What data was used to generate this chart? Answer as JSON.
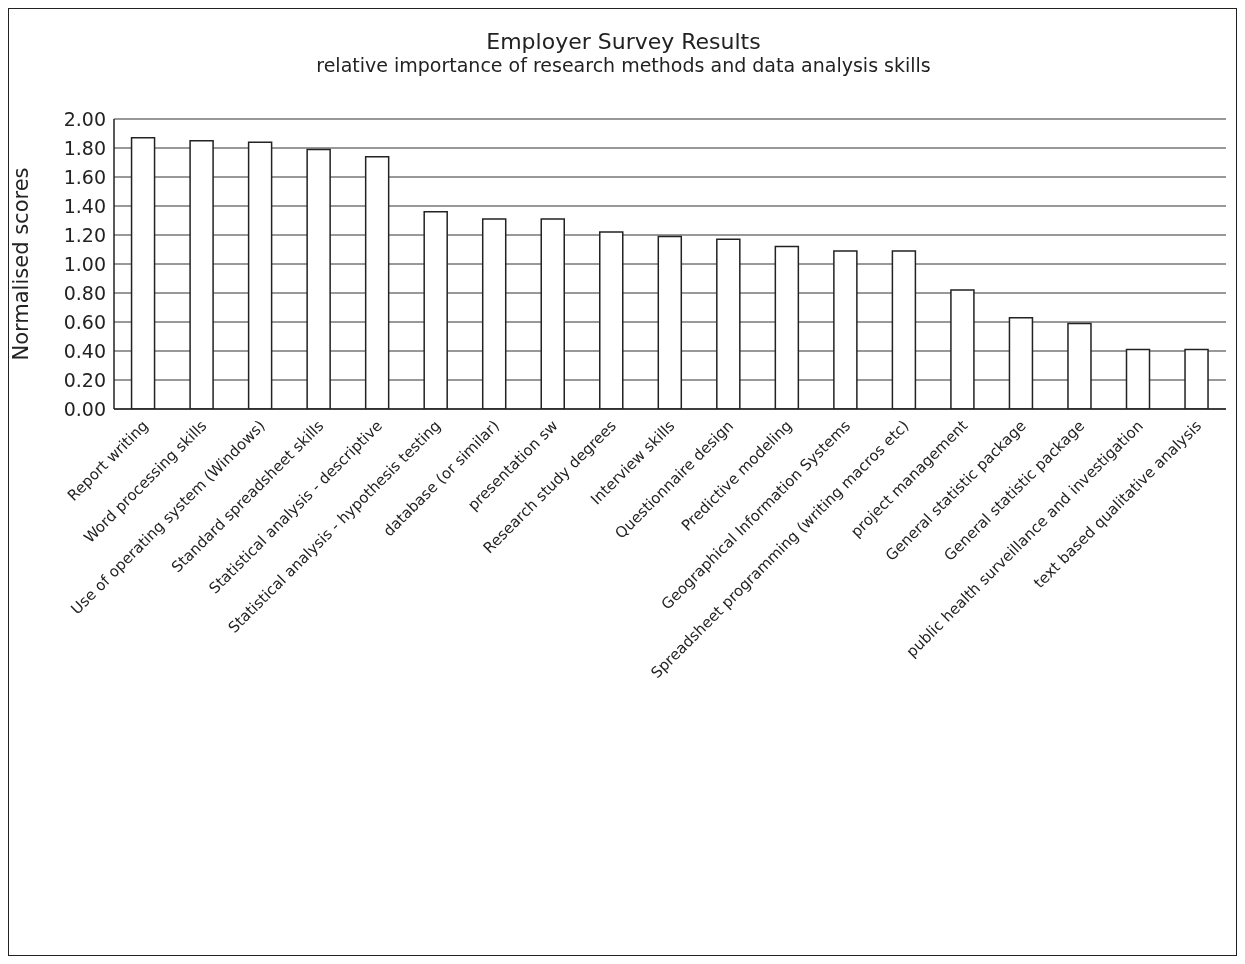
{
  "chart_data": {
    "type": "bar",
    "title": "Employer Survey Results",
    "subtitle": "relative importance of research methods and data analysis skills",
    "ylabel": "Normalised scores",
    "categories": [
      "Report writing",
      "Word processing skills",
      "Use of operating system (Windows)",
      "Standard spreadsheet skills",
      "Statistical analysis - descriptive",
      "Statistical analysis - hypothesis testing",
      "database (or similar)",
      "presentation sw",
      "Research study degrees",
      "Interview skills",
      "Questionnaire design",
      "Predictive modeling",
      "Geographical Information Systems",
      "Spreadsheet programming (writing macros etc)",
      "project management",
      "General statistic package",
      "General statistic package",
      "public health surveillance and investigation",
      "text based qualitative analysis"
    ],
    "values": [
      1.87,
      1.85,
      1.84,
      1.79,
      1.74,
      1.36,
      1.31,
      1.31,
      1.22,
      1.19,
      1.17,
      1.12,
      1.09,
      1.09,
      0.82,
      0.63,
      0.59,
      0.41,
      0.41
    ],
    "color": "#ffffff",
    "ylim": [
      0,
      2
    ],
    "yticks": [
      {
        "value": 0,
        "label": "0.00"
      },
      {
        "value": 0.2,
        "label": "0.20"
      },
      {
        "value": 0.4,
        "label": "0.40"
      },
      {
        "value": 0.6,
        "label": "0.60"
      },
      {
        "value": 0.8,
        "label": "0.80"
      },
      {
        "value": 1,
        "label": "1.00"
      },
      {
        "value": 1.2,
        "label": "1.20"
      },
      {
        "value": 1.4,
        "label": "1.40"
      },
      {
        "value": 1.6,
        "label": "1.60"
      },
      {
        "value": 1.8,
        "label": "1.80"
      },
      {
        "value": 2,
        "label": "2.00"
      }
    ],
    "grid": "y",
    "legend": false
  }
}
